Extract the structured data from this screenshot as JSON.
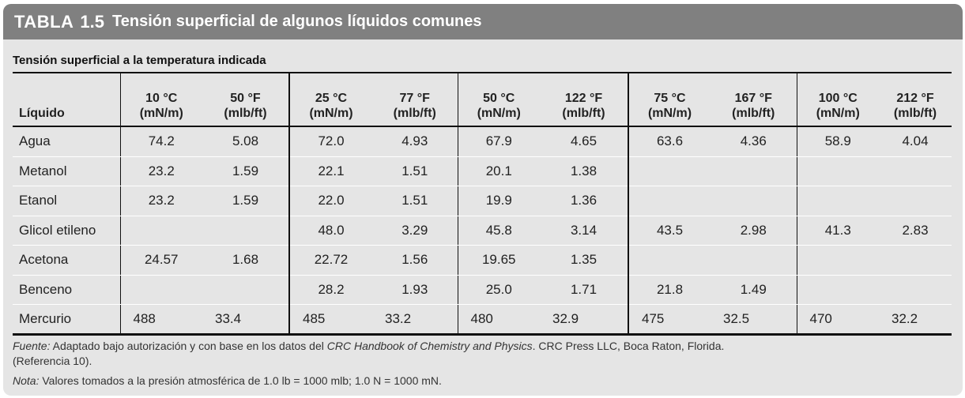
{
  "title": {
    "label": "TABLA",
    "number": "1.5",
    "text": "Tensión superficial de algunos líquidos comunes"
  },
  "subtitle": "Tensión superficial a la temperatura indicada",
  "table": {
    "liquid_header": "Líquido",
    "columns": [
      {
        "temp": "10 °C",
        "unit": "(mN/m)"
      },
      {
        "temp": "50 °F",
        "unit": "(mlb/ft)"
      },
      {
        "temp": "25 °C",
        "unit": "(mN/m)"
      },
      {
        "temp": "77 °F",
        "unit": "(mlb/ft)"
      },
      {
        "temp": "50 °C",
        "unit": "(mN/m)"
      },
      {
        "temp": "122 °F",
        "unit": "(mlb/ft)"
      },
      {
        "temp": "75 °C",
        "unit": "(mN/m)"
      },
      {
        "temp": "167 °F",
        "unit": "(mlb/ft)"
      },
      {
        "temp": "100 °C",
        "unit": "(mN/m)"
      },
      {
        "temp": "212 °F",
        "unit": "(mlb/ft)"
      }
    ],
    "rows": [
      {
        "name": "Agua",
        "values": [
          "74.2",
          "5.08",
          "72.0",
          "4.93",
          "67.9",
          "4.65",
          "63.6",
          "4.36",
          "58.9",
          "4.04"
        ]
      },
      {
        "name": "Metanol",
        "values": [
          "23.2",
          "1.59",
          "22.1",
          "1.51",
          "20.1",
          "1.38",
          "",
          "",
          "",
          ""
        ]
      },
      {
        "name": "Etanol",
        "values": [
          "23.2",
          "1.59",
          "22.0",
          "1.51",
          "19.9",
          "1.36",
          "",
          "",
          "",
          ""
        ]
      },
      {
        "name": "Glicol etileno",
        "values": [
          "",
          "",
          "48.0",
          "3.29",
          "45.8",
          "3.14",
          "43.5",
          "2.98",
          "41.3",
          "2.83"
        ]
      },
      {
        "name": "Acetona",
        "values": [
          "24.57",
          "1.68",
          "22.72",
          "1.56",
          "19.65",
          "1.35",
          "",
          "",
          "",
          ""
        ]
      },
      {
        "name": "Benceno",
        "values": [
          "",
          "",
          "28.2",
          "1.93",
          "25.0",
          "1.71",
          "21.8",
          "1.49",
          "",
          ""
        ]
      },
      {
        "name": "Mercurio",
        "values": [
          "488",
          "33.4",
          "485",
          "33.2",
          "480",
          "32.9",
          "475",
          "32.5",
          "470",
          "32.2"
        ]
      }
    ]
  },
  "notes": {
    "source_label": "Fuente:",
    "source_text_a": " Adaptado bajo autorización y con base en los datos del ",
    "source_book": "CRC Handbook of Chemistry and Physics",
    "source_text_b": ". CRC Press LLC, Boca Raton, Florida.",
    "source_ref": "(Referencia 10).",
    "note_label": "Nota:",
    "note_text": " Valores tomados a la presión atmosférica de 1.0 lb = 1000 mlb; 1.0 N = 1000 mN."
  }
}
